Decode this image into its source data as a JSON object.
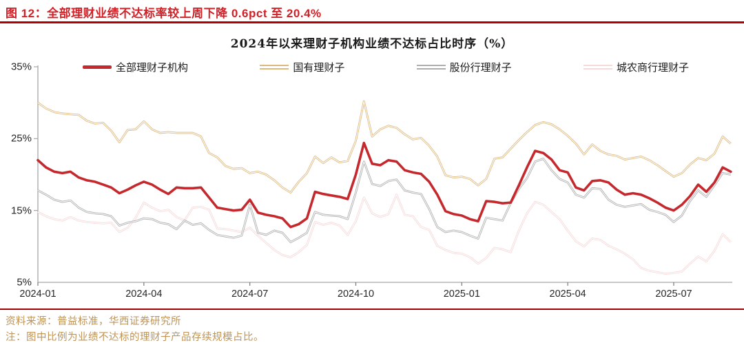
{
  "figure_title": "图 12：全部理财业绩不达标率较上周下降 0.6pct 至 20.4%",
  "footer": {
    "source": "资料来源：普益标准，华西证券研究所",
    "note": "注：图中比例为业绩不达标的理财子产品存续规模占比。"
  },
  "colors": {
    "title_red": "#cf2128",
    "title_rule_red": "#b20000",
    "divider_red": "#a00000",
    "source_text_tan": "#be9355",
    "axis_gray": "#a6a6a6",
    "tick_text": "#262626"
  },
  "chart_data": {
    "type": "line",
    "title": "2024年以来理财子机构业绩不达标占比时序（%）",
    "xlabel": "",
    "ylabel": "",
    "ylim": [
      5,
      35
    ],
    "grid": false,
    "legend_position": "top",
    "x_tick_labels": [
      "2024-01",
      "2024-04",
      "2024-07",
      "2024-10",
      "2025-01",
      "2025-04",
      "2025-07"
    ],
    "y_tick_labels": [
      "35%",
      "25%",
      "15%",
      "5%"
    ],
    "y_tick_values": [
      35,
      25,
      15,
      5
    ],
    "x_unit": "week",
    "series": [
      {
        "name": "全部理财子机构",
        "color": "#c5292e",
        "style": "solid-bold",
        "values": [
          22.0,
          21.0,
          20.4,
          20.2,
          20.4,
          19.6,
          19.2,
          19.0,
          18.6,
          18.2,
          17.4,
          17.9,
          18.5,
          19.0,
          18.6,
          17.9,
          17.3,
          18.2,
          18.1,
          18.1,
          18.2,
          16.8,
          15.4,
          15.2,
          15.0,
          15.1,
          16.5,
          14.7,
          14.4,
          14.2,
          13.9,
          12.7,
          13.1,
          13.9,
          17.6,
          17.3,
          17.1,
          16.9,
          16.6,
          20.0,
          24.4,
          21.5,
          21.3,
          22.0,
          21.8,
          20.6,
          20.3,
          20.1,
          19.0,
          17.2,
          14.9,
          14.5,
          14.3,
          13.8,
          13.5,
          16.3,
          16.2,
          16.0,
          16.1,
          18.5,
          21.0,
          23.3,
          23.0,
          22.1,
          20.6,
          20.3,
          18.2,
          17.8,
          19.1,
          19.2,
          18.9,
          17.9,
          17.2,
          17.4,
          17.2,
          16.7,
          16.1,
          15.4,
          15.0,
          15.8,
          17.0,
          18.6,
          17.6,
          18.9,
          21.0,
          20.4
        ]
      },
      {
        "name": "国有理财子",
        "color": "#ddb97e",
        "style": "double",
        "values": [
          30.0,
          29.2,
          28.7,
          28.5,
          28.4,
          28.3,
          27.5,
          27.1,
          27.2,
          26.1,
          24.5,
          26.2,
          26.3,
          27.4,
          26.3,
          25.8,
          25.9,
          25.8,
          25.8,
          25.8,
          25.3,
          23.0,
          22.4,
          21.2,
          20.8,
          20.9,
          20.2,
          20.4,
          20.0,
          19.2,
          18.2,
          17.5,
          19.0,
          20.2,
          22.5,
          21.6,
          22.4,
          21.7,
          21.9,
          24.7,
          30.2,
          25.3,
          26.3,
          26.8,
          26.5,
          25.6,
          24.9,
          25.1,
          24.0,
          22.5,
          19.9,
          19.6,
          19.7,
          19.4,
          18.5,
          19.4,
          22.2,
          22.4,
          23.6,
          24.8,
          25.9,
          26.9,
          27.3,
          27.0,
          26.3,
          25.4,
          24.3,
          22.8,
          24.2,
          23.3,
          22.8,
          22.6,
          22.1,
          22.3,
          22.5,
          22.0,
          21.3,
          20.5,
          19.7,
          20.2,
          21.4,
          22.3,
          22.0,
          22.9,
          25.3,
          24.3
        ]
      },
      {
        "name": "股份行理财子",
        "color": "#adadad",
        "style": "double",
        "values": [
          17.8,
          17.2,
          16.5,
          16.2,
          16.4,
          15.4,
          14.8,
          14.6,
          14.5,
          14.2,
          12.9,
          13.3,
          13.5,
          13.9,
          13.8,
          13.3,
          13.1,
          12.4,
          13.6,
          13.0,
          13.2,
          12.3,
          11.6,
          11.4,
          11.2,
          11.5,
          15.8,
          11.9,
          11.6,
          12.2,
          11.9,
          10.6,
          11.2,
          11.9,
          14.8,
          14.4,
          14.3,
          14.2,
          13.8,
          17.5,
          21.8,
          18.7,
          18.4,
          19.1,
          19.3,
          17.8,
          17.5,
          17.3,
          15.2,
          12.7,
          12.0,
          12.2,
          12.0,
          11.5,
          11.1,
          14.0,
          13.8,
          13.6,
          16.0,
          18.0,
          19.5,
          21.8,
          22.2,
          20.6,
          19.4,
          18.9,
          17.2,
          16.8,
          18.1,
          18.0,
          16.5,
          15.8,
          15.5,
          15.7,
          15.9,
          15.1,
          14.8,
          14.4,
          13.4,
          14.3,
          16.3,
          17.8,
          16.9,
          18.5,
          20.2,
          20.0
        ]
      },
      {
        "name": "城农商行理财子",
        "color": "#f6d9d9",
        "style": "double",
        "values": [
          14.8,
          14.2,
          13.8,
          13.6,
          14.1,
          13.6,
          13.4,
          13.3,
          13.2,
          13.3,
          12.0,
          12.6,
          14.0,
          16.1,
          15.4,
          14.9,
          15.1,
          14.1,
          13.6,
          15.4,
          15.5,
          15.1,
          12.5,
          12.4,
          12.2,
          12.0,
          12.6,
          11.5,
          10.5,
          9.5,
          8.8,
          8.5,
          9.2,
          10.2,
          13.4,
          13.0,
          13.3,
          12.9,
          11.6,
          13.5,
          16.8,
          14.6,
          14.1,
          14.5,
          17.2,
          14.4,
          14.2,
          12.7,
          12.3,
          10.1,
          9.5,
          9.1,
          9.0,
          8.5,
          7.6,
          8.4,
          9.8,
          9.6,
          9.2,
          12.2,
          14.6,
          16.2,
          15.8,
          14.8,
          13.8,
          12.2,
          10.7,
          10.0,
          11.1,
          10.9,
          10.1,
          9.6,
          9.0,
          8.2,
          7.0,
          6.6,
          6.4,
          6.2,
          6.3,
          6.5,
          7.6,
          8.6,
          7.9,
          9.4,
          11.7,
          10.6
        ]
      }
    ]
  }
}
